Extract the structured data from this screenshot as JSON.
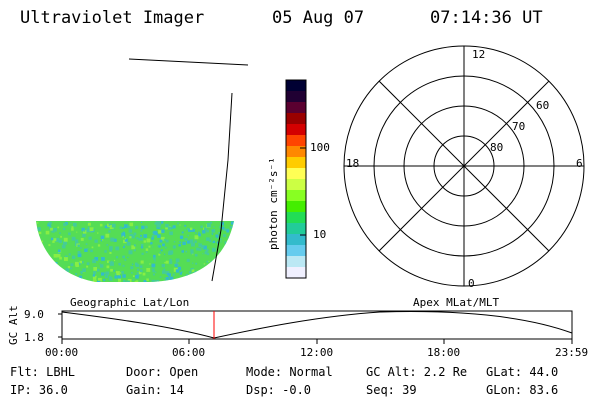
{
  "header": {
    "instrument": "Ultraviolet Imager",
    "date": "05 Aug 07",
    "time": "07:14:36 UT"
  },
  "colorbar": {
    "unit_label": "photon cm⁻²s⁻¹",
    "ticks": [
      "100",
      "10"
    ],
    "colors": [
      "#000033",
      "#200033",
      "#5a0030",
      "#9a0000",
      "#d40000",
      "#ff4400",
      "#ff8800",
      "#ffcc00",
      "#ffff55",
      "#ccff44",
      "#88ff22",
      "#44ee00",
      "#22dd55",
      "#22cc99",
      "#33bbcc",
      "#66ccee",
      "#bbe8f4",
      "#f0f0ff"
    ]
  },
  "polar_plot": {
    "mlt_labels": {
      "top": "12",
      "left": "18",
      "right": "6",
      "bottom": "0"
    },
    "mlat_labels": [
      "60",
      "70",
      "80"
    ]
  },
  "timeline": {
    "left_label": "Geographic Lat/Lon",
    "right_label": "Apex MLat/MLT",
    "axis_title": "GC Alt",
    "y_labels": [
      "9.0",
      "1.8"
    ],
    "x_labels": [
      "00:00",
      "06:00",
      "12:00",
      "18:00",
      "23:59"
    ],
    "current_marker_color": "#ff0000"
  },
  "info": {
    "flt": "Flt: LBHL",
    "door": "Door: Open",
    "mode": "Mode: Normal",
    "gc_alt": "GC Alt: 2.2 Re",
    "glat": "GLat:  44.0",
    "ip": "IP: 36.0",
    "gain": "Gain: 14",
    "dsp": "Dsp:  -0.0",
    "seq": "Seq: 39",
    "glon": "GLon:  83.6"
  },
  "image_colors": {
    "base": "#55dd55",
    "speckle_a": "#44cc99",
    "speckle_b": "#33bbcc",
    "speckle_c": "#88ee44"
  }
}
